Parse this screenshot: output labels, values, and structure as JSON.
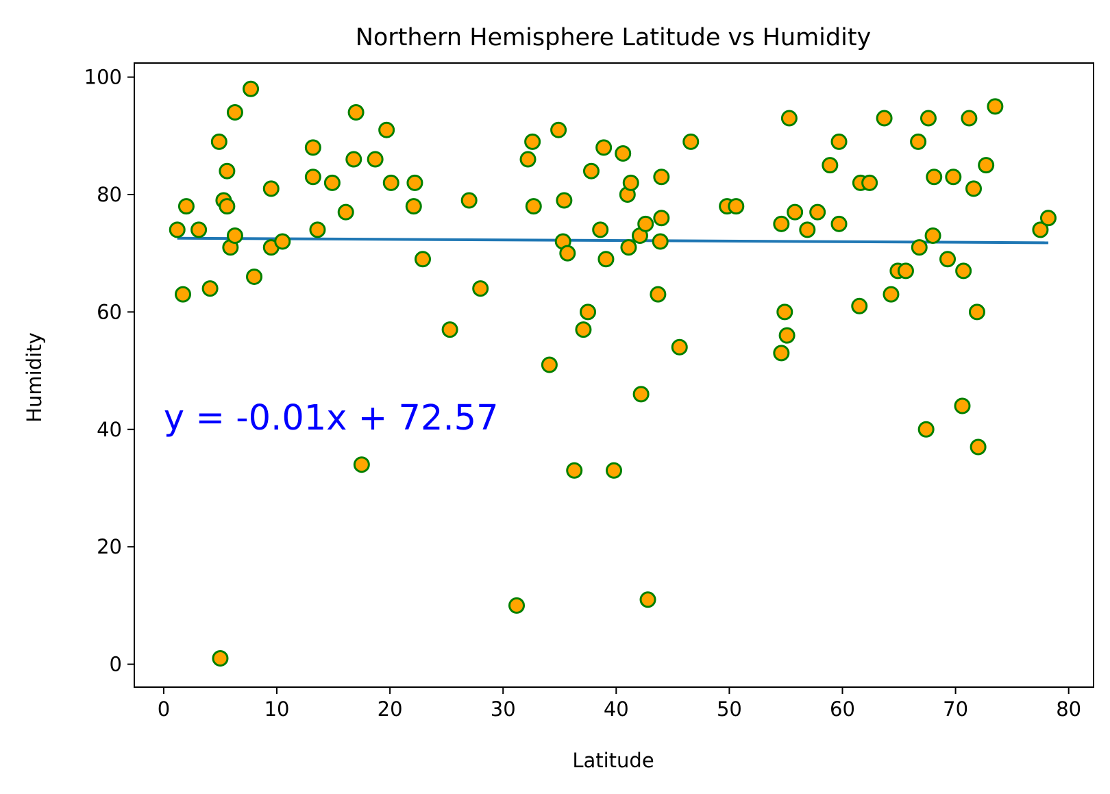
{
  "chart_data": {
    "type": "scatter",
    "title": "Northern Hemisphere Latitude vs Humidity",
    "xlabel": "Latitude",
    "ylabel": "Humidity",
    "xlim": [
      -2.6,
      82.2
    ],
    "ylim": [
      -3.9,
      102.4
    ],
    "xticks": [
      0,
      10,
      20,
      30,
      40,
      50,
      60,
      70,
      80
    ],
    "yticks": [
      0,
      20,
      40,
      60,
      80,
      100
    ],
    "grid": false,
    "legend": "none",
    "marker_fill": "#ffa500",
    "marker_edge": "#008000",
    "line_color": "#1f77b4",
    "regression": {
      "slope": -0.01,
      "intercept": 72.57,
      "x_range": [
        1.2,
        78.2
      ],
      "equation_label": "y = -0.01x + 72.57",
      "label_position": [
        0,
        40
      ],
      "label_color": "#0000ff"
    },
    "points": [
      [
        1.2,
        74
      ],
      [
        1.7,
        63
      ],
      [
        2.0,
        78
      ],
      [
        3.1,
        74
      ],
      [
        4.1,
        64
      ],
      [
        4.9,
        89
      ],
      [
        5.0,
        1
      ],
      [
        5.3,
        79
      ],
      [
        5.6,
        84
      ],
      [
        5.6,
        78
      ],
      [
        5.9,
        71
      ],
      [
        6.3,
        94
      ],
      [
        6.3,
        73
      ],
      [
        7.7,
        98
      ],
      [
        8.0,
        66
      ],
      [
        9.5,
        81
      ],
      [
        9.5,
        71
      ],
      [
        10.5,
        72
      ],
      [
        13.2,
        88
      ],
      [
        13.2,
        83
      ],
      [
        13.6,
        74
      ],
      [
        14.9,
        82
      ],
      [
        16.1,
        77
      ],
      [
        16.8,
        86
      ],
      [
        17.0,
        94
      ],
      [
        17.5,
        34
      ],
      [
        18.7,
        86
      ],
      [
        19.7,
        91
      ],
      [
        20.1,
        82
      ],
      [
        22.1,
        78
      ],
      [
        22.2,
        82
      ],
      [
        22.9,
        69
      ],
      [
        25.3,
        57
      ],
      [
        27.0,
        79
      ],
      [
        28.0,
        64
      ],
      [
        31.2,
        10
      ],
      [
        32.2,
        86
      ],
      [
        32.6,
        89
      ],
      [
        32.7,
        78
      ],
      [
        34.1,
        51
      ],
      [
        34.9,
        91
      ],
      [
        35.3,
        72
      ],
      [
        35.4,
        79
      ],
      [
        35.7,
        70
      ],
      [
        36.3,
        33
      ],
      [
        37.1,
        57
      ],
      [
        37.5,
        60
      ],
      [
        37.8,
        84
      ],
      [
        38.6,
        74
      ],
      [
        38.9,
        88
      ],
      [
        39.1,
        69
      ],
      [
        39.8,
        33
      ],
      [
        40.6,
        87
      ],
      [
        41.0,
        80
      ],
      [
        41.1,
        71
      ],
      [
        41.3,
        82
      ],
      [
        42.1,
        73
      ],
      [
        42.2,
        46
      ],
      [
        42.6,
        75
      ],
      [
        42.8,
        11
      ],
      [
        43.7,
        63
      ],
      [
        43.9,
        72
      ],
      [
        44.0,
        83
      ],
      [
        44.0,
        76
      ],
      [
        45.6,
        54
      ],
      [
        46.6,
        89
      ],
      [
        49.8,
        78
      ],
      [
        50.6,
        78
      ],
      [
        54.6,
        75
      ],
      [
        54.6,
        53
      ],
      [
        54.9,
        60
      ],
      [
        55.1,
        56
      ],
      [
        55.3,
        93
      ],
      [
        55.8,
        77
      ],
      [
        56.9,
        74
      ],
      [
        57.8,
        77
      ],
      [
        58.9,
        85
      ],
      [
        59.7,
        89
      ],
      [
        59.7,
        75
      ],
      [
        61.5,
        61
      ],
      [
        61.6,
        82
      ],
      [
        62.4,
        82
      ],
      [
        63.7,
        93
      ],
      [
        64.3,
        63
      ],
      [
        64.9,
        67
      ],
      [
        65.6,
        67
      ],
      [
        66.7,
        89
      ],
      [
        66.8,
        71
      ],
      [
        67.4,
        40
      ],
      [
        67.6,
        93
      ],
      [
        68.0,
        73
      ],
      [
        68.1,
        83
      ],
      [
        69.3,
        69
      ],
      [
        69.8,
        83
      ],
      [
        70.6,
        44
      ],
      [
        70.7,
        67
      ],
      [
        71.2,
        93
      ],
      [
        71.6,
        81
      ],
      [
        71.9,
        60
      ],
      [
        72.0,
        37
      ],
      [
        72.7,
        85
      ],
      [
        73.5,
        95
      ],
      [
        77.5,
        74
      ],
      [
        78.2,
        76
      ]
    ]
  }
}
